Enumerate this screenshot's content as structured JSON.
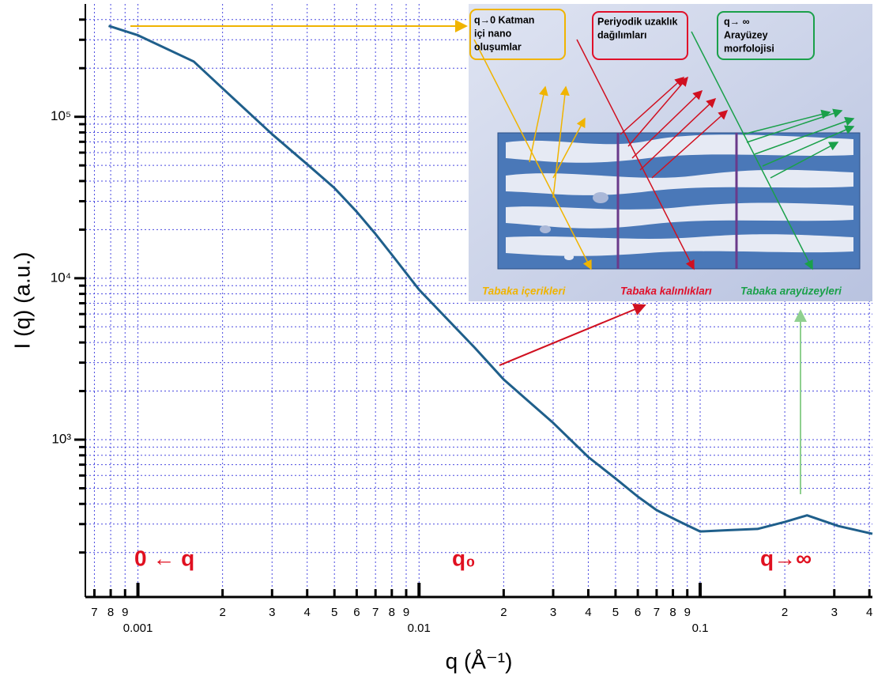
{
  "chart_data": {
    "type": "line",
    "x_label": "q (Å⁻¹)",
    "y_label": "I (q)  (a.u.)",
    "x_log": true,
    "y_log": true,
    "grid": true,
    "xlim": [
      0.00065,
      0.41
    ],
    "ylim": [
      106,
      500000
    ],
    "xticks": [
      {
        "value": 0.0007,
        "label": "7"
      },
      {
        "value": 0.0008,
        "label": "8"
      },
      {
        "value": 0.0009,
        "label": "9"
      },
      0.001,
      {
        "value": 0.002,
        "label": "2"
      },
      {
        "value": 0.003,
        "label": "3"
      },
      {
        "value": 0.004,
        "label": "4"
      },
      {
        "value": 0.005,
        "label": "5"
      },
      {
        "value": 0.006,
        "label": "6"
      },
      {
        "value": 0.007,
        "label": "7"
      },
      {
        "value": 0.008,
        "label": "8"
      },
      {
        "value": 0.009,
        "label": "9"
      },
      0.01,
      {
        "value": 0.02,
        "label": "2"
      },
      {
        "value": 0.03,
        "label": "3"
      },
      {
        "value": 0.04,
        "label": "4"
      },
      {
        "value": 0.05,
        "label": "5"
      },
      {
        "value": 0.06,
        "label": "6"
      },
      {
        "value": 0.07,
        "label": "7"
      },
      {
        "value": 0.08,
        "label": "8"
      },
      {
        "value": 0.09,
        "label": "9"
      },
      0.1,
      {
        "value": 0.2,
        "label": "2"
      },
      {
        "value": 0.3,
        "label": "3"
      },
      {
        "value": 0.4,
        "label": "4"
      }
    ],
    "yticks": [
      {
        "value": 1000,
        "label": "10³"
      },
      {
        "value": 10000,
        "label": "10⁴"
      },
      {
        "value": 100000,
        "label": "10⁵"
      }
    ],
    "y_minor_ticks": [
      200,
      300,
      400,
      500,
      600,
      700,
      800,
      900,
      2000,
      3000,
      4000,
      5000,
      6000,
      7000,
      8000,
      9000,
      20000,
      30000,
      40000,
      50000,
      60000,
      70000,
      80000,
      90000,
      200000,
      300000,
      400000
    ],
    "series": [
      {
        "color": "#1f5f8b",
        "x": [
          0.000787,
          0.001,
          0.00158,
          0.002,
          0.003,
          0.004,
          0.005,
          0.006,
          0.007,
          0.008,
          0.01,
          0.0158,
          0.02,
          0.03,
          0.04,
          0.05,
          0.06,
          0.07,
          0.085,
          0.1,
          0.125,
          0.16,
          0.2,
          0.24,
          0.31,
          0.41
        ],
        "values": [
          366000,
          320000,
          220000,
          150000,
          78000,
          50800,
          36200,
          25800,
          18800,
          14000,
          8500,
          3700,
          2360,
          1270,
          780,
          575,
          444,
          366,
          309,
          270,
          275,
          280,
          309,
          340,
          292,
          261
        ]
      }
    ],
    "annotations": [
      "0 ← q",
      "q₀",
      "q→∞"
    ],
    "inset": {
      "boxes": [
        [
          "q→0 Katman",
          "içi nano",
          "oluşumlar"
        ],
        [
          "Periyodik uzaklık",
          "dağılımları"
        ],
        [
          "q→ ∞",
          "Arayüzey",
          "morfolojisi"
        ]
      ],
      "labels": [
        "Tabaka içerikleri",
        "Tabaka  kalınlıkları",
        "Tabaka arayüzeyleri"
      ]
    }
  }
}
